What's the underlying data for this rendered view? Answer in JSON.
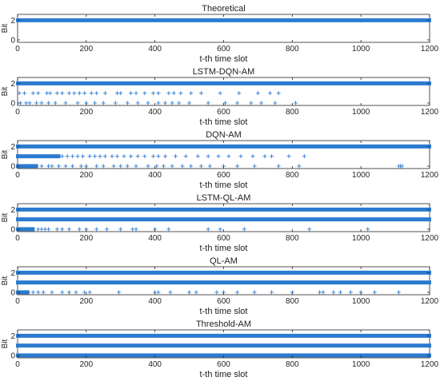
{
  "chart_data": [
    {
      "type": "scatter",
      "title": "Theoretical",
      "xlabel": "t-th time slot",
      "ylabel": "Bit",
      "xlim": [
        0,
        1200
      ],
      "ylim": [
        0,
        2
      ],
      "xticks": [
        0,
        200,
        400,
        600,
        800,
        1000,
        1200
      ],
      "yticks": [
        0,
        2
      ],
      "marker": "+",
      "series": [
        {
          "y": 2,
          "ranges": [
            [
              0,
              1200
            ]
          ],
          "x": []
        }
      ]
    },
    {
      "type": "scatter",
      "title": "LSTM-DQN-AM",
      "xlabel": "t-th time slot",
      "ylabel": "Bit",
      "xlim": [
        0,
        1200
      ],
      "ylim": [
        0,
        2
      ],
      "xticks": [
        0,
        200,
        400,
        600,
        800,
        1000,
        1200
      ],
      "yticks": [
        0,
        2
      ],
      "marker": "+",
      "series": [
        {
          "y": 2,
          "ranges": [
            [
              0,
              1200
            ]
          ],
          "x": []
        },
        {
          "y": 1,
          "ranges": [],
          "x": [
            5,
            20,
            45,
            60,
            85,
            95,
            115,
            130,
            150,
            165,
            180,
            195,
            215,
            230,
            255,
            290,
            300,
            330,
            345,
            370,
            395,
            410,
            440,
            455,
            475,
            505,
            535,
            590,
            645,
            700,
            735,
            760
          ]
        },
        {
          "y": 0,
          "ranges": [],
          "x": [
            8,
            25,
            35,
            55,
            70,
            90,
            110,
            140,
            175,
            200,
            225,
            250,
            285,
            320,
            350,
            380,
            410,
            430,
            450,
            470,
            500,
            555,
            605,
            640,
            680,
            710,
            750,
            810
          ]
        }
      ]
    },
    {
      "type": "scatter",
      "title": "DQN-AM",
      "xlabel": "t-th time slot",
      "ylabel": "Bit",
      "xlim": [
        0,
        1200
      ],
      "ylim": [
        0,
        2
      ],
      "xticks": [
        0,
        200,
        400,
        600,
        800,
        1000,
        1200
      ],
      "yticks": [
        0,
        2
      ],
      "marker": "+",
      "series": [
        {
          "y": 2,
          "ranges": [
            [
              0,
              1200
            ]
          ],
          "x": []
        },
        {
          "y": 1,
          "ranges": [
            [
              0,
              120
            ]
          ],
          "x": [
            130,
            145,
            160,
            175,
            190,
            210,
            225,
            240,
            255,
            275,
            290,
            310,
            330,
            350,
            370,
            395,
            410,
            430,
            460,
            490,
            525,
            555,
            585,
            615,
            650,
            685,
            720,
            740,
            790,
            835
          ]
        },
        {
          "y": 0,
          "ranges": [
            [
              0,
              55
            ]
          ],
          "x": [
            70,
            90,
            100,
            120,
            140,
            160,
            185,
            200,
            230,
            250,
            280,
            300,
            320,
            345,
            380,
            405,
            425,
            450,
            480,
            505,
            535,
            560,
            600,
            640,
            690,
            760,
            820,
            1110,
            1115,
            1120
          ]
        }
      ]
    },
    {
      "type": "scatter",
      "title": "LSTM-QL-AM",
      "xlabel": "t-th time slot",
      "ylabel": "Bit",
      "xlim": [
        0,
        1200
      ],
      "ylim": [
        0,
        2
      ],
      "xticks": [
        0,
        200,
        400,
        600,
        800,
        1000,
        1200
      ],
      "yticks": [
        0,
        2
      ],
      "marker": "+",
      "series": [
        {
          "y": 2,
          "ranges": [
            [
              0,
              1200
            ]
          ],
          "x": []
        },
        {
          "y": 1,
          "ranges": [
            [
              0,
              1200
            ]
          ],
          "x": []
        },
        {
          "y": 0,
          "ranges": [
            [
              0,
              45
            ]
          ],
          "x": [
            60,
            70,
            80,
            90,
            115,
            130,
            150,
            180,
            200,
            230,
            260,
            300,
            335,
            345,
            400,
            440,
            555,
            590,
            660,
            850,
            1020
          ]
        }
      ]
    },
    {
      "type": "scatter",
      "title": "QL-AM",
      "xlabel": "t-th time slot",
      "ylabel": "Bit",
      "xlim": [
        0,
        1200
      ],
      "ylim": [
        0,
        2
      ],
      "xticks": [
        0,
        200,
        400,
        600,
        800,
        1000,
        1200
      ],
      "yticks": [
        0,
        2
      ],
      "marker": "+",
      "series": [
        {
          "y": 2,
          "ranges": [
            [
              0,
              1200
            ]
          ],
          "x": []
        },
        {
          "y": 1,
          "ranges": [
            [
              0,
              1200
            ]
          ],
          "x": []
        },
        {
          "y": 0,
          "ranges": [
            [
              0,
              30
            ]
          ],
          "x": [
            45,
            60,
            75,
            100,
            130,
            150,
            170,
            195,
            210,
            295,
            400,
            410,
            445,
            500,
            520,
            580,
            600,
            640,
            690,
            740,
            800,
            880,
            890,
            920,
            940,
            970,
            1000,
            1040,
            1110
          ]
        }
      ]
    },
    {
      "type": "scatter",
      "title": "Threshold-AM",
      "xlabel": "t-th time slot",
      "ylabel": "Bit",
      "xlim": [
        0,
        1200
      ],
      "ylim": [
        0,
        2
      ],
      "xticks": [
        0,
        200,
        400,
        600,
        800,
        1000,
        1200
      ],
      "yticks": [
        0,
        2
      ],
      "marker": "+",
      "series": [
        {
          "y": 2,
          "ranges": [
            [
              0,
              1200
            ]
          ],
          "x": []
        },
        {
          "y": 1,
          "ranges": [
            [
              0,
              1200
            ]
          ],
          "x": []
        },
        {
          "y": 0,
          "ranges": [
            [
              0,
              1200
            ]
          ],
          "x": []
        }
      ]
    }
  ],
  "colors": {
    "marker": "#2b7bd0",
    "axis": "#262626"
  }
}
